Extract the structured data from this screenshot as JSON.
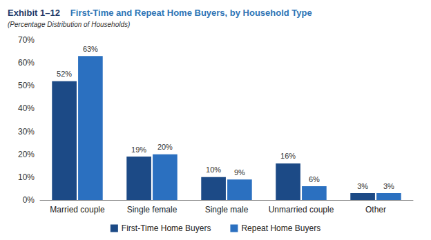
{
  "chart_data": {
    "type": "bar",
    "exhibit": "Exhibit 1–12",
    "title": "First-Time and Repeat Home Buyers, by Household Type",
    "subtitle": "(Percentage Distribution of Households)",
    "categories": [
      "Married couple",
      "Single female",
      "Single male",
      "Unmarried couple",
      "Other"
    ],
    "series": [
      {
        "name": "First-Time Home Buyers",
        "color": "#1c4a86",
        "values": [
          52,
          19,
          10,
          16,
          3
        ],
        "value_labels": [
          "52%",
          "19%",
          "10%",
          "16%",
          "3%"
        ]
      },
      {
        "name": "Repeat Home Buyers",
        "color": "#2b70c0",
        "values": [
          63,
          20,
          9,
          6,
          3
        ],
        "value_labels": [
          "63%",
          "20%",
          "9%",
          "6%",
          "3%"
        ]
      }
    ],
    "ylim": [
      0,
      70
    ],
    "yticks": [
      {
        "value": 0,
        "label": "0%"
      },
      {
        "value": 10,
        "label": "10%"
      },
      {
        "value": 20,
        "label": "20%"
      },
      {
        "value": 30,
        "label": "30%"
      },
      {
        "value": 40,
        "label": "40%"
      },
      {
        "value": 50,
        "label": "50%"
      },
      {
        "value": 60,
        "label": "60%"
      },
      {
        "value": 70,
        "label": "70%"
      }
    ],
    "grid": false,
    "legend": "bottom",
    "data_labels": true
  }
}
